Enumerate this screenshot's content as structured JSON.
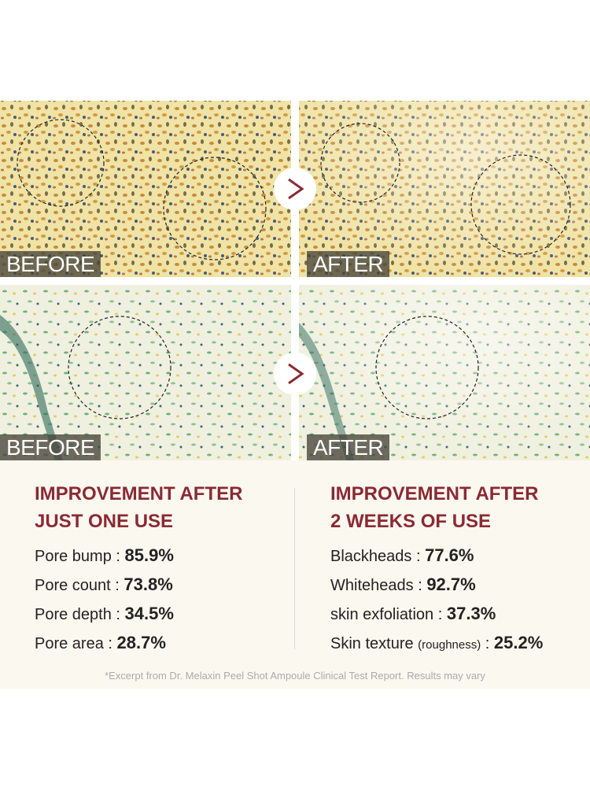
{
  "panels": [
    {
      "before_label": "BEFORE",
      "after_label": "AFTER"
    },
    {
      "before_label": "BEFORE",
      "after_label": "AFTER"
    }
  ],
  "columns": [
    {
      "heading": [
        "IMPROVEMENT AFTER",
        "JUST ONE USE"
      ],
      "stats": [
        {
          "label": "Pore bump",
          "value": "85.9%"
        },
        {
          "label": "Pore count",
          "value": "73.8%"
        },
        {
          "label": "Pore depth",
          "value": "34.5%"
        },
        {
          "label": "Pore area",
          "value": "28.7%"
        }
      ]
    },
    {
      "heading": [
        "IMPROVEMENT AFTER",
        "2 WEEKS OF USE"
      ],
      "stats": [
        {
          "label": "Blackheads",
          "value": "77.6%"
        },
        {
          "label": "Whiteheads",
          "value": "92.7%"
        },
        {
          "label": "skin exfoliation",
          "value": "37.3%"
        },
        {
          "label": "Skin texture",
          "note": "(roughness)",
          "value": "25.2%"
        }
      ]
    }
  ],
  "separator": ":",
  "footnote": "*Excerpt from Dr. Melaxin Peel Shot Ampoule Clinical Test Report. Results may vary"
}
